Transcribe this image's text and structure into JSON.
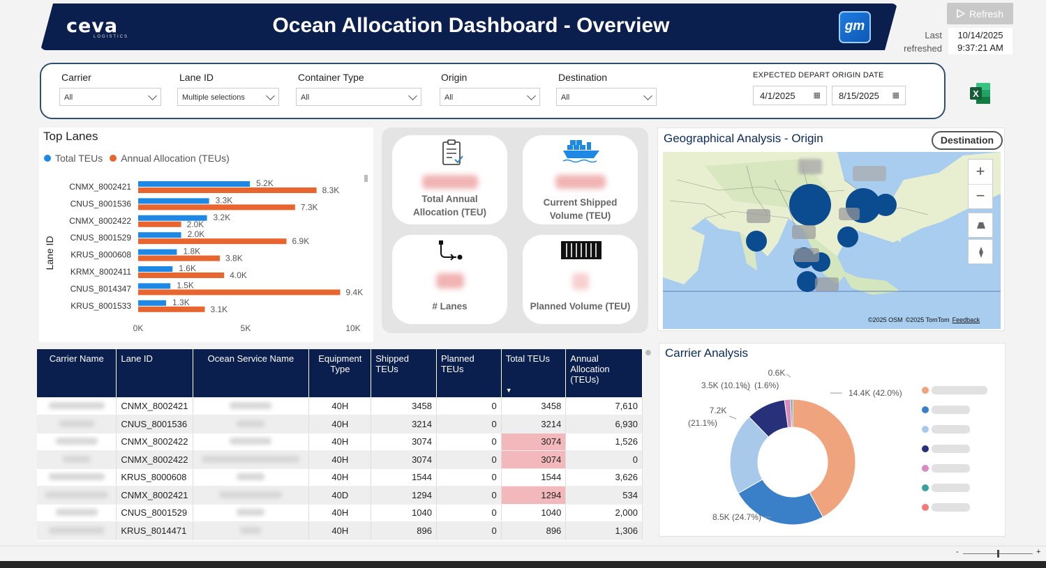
{
  "header": {
    "logo": "ceva",
    "logo_sub": "LOGISTICS",
    "title": "Ocean Allocation Dashboard - Overview",
    "brand_logo": "gm",
    "accent": "#0b1f4e"
  },
  "refresh": {
    "label": "Refresh",
    "last_refreshed_label_1": "Last",
    "last_refreshed_label_2": "refreshed",
    "date": "10/14/2025",
    "time": "9:37:21 AM"
  },
  "filters": {
    "carrier": {
      "label": "Carrier",
      "value": "All"
    },
    "lane_id": {
      "label": "Lane ID",
      "value": "Multiple selections"
    },
    "container_type": {
      "label": "Container Type",
      "value": "All"
    },
    "origin": {
      "label": "Origin",
      "value": "All"
    },
    "destination": {
      "label": "Destination",
      "value": "All"
    },
    "date_range": {
      "label": "EXPECTED DEPART ORIGIN DATE",
      "start": "4/1/2025",
      "end": "8/15/2025"
    }
  },
  "top_lanes": {
    "title": "Top Lanes",
    "legend": [
      "Total TEUs",
      "Annual Allocation (TEUs)"
    ],
    "colors": {
      "total": "#1e88e5",
      "annual": "#e8652f"
    }
  },
  "chart_data": {
    "type": "bar",
    "title": "Top Lanes",
    "ylabel": "Lane ID",
    "xlabel": "",
    "orientation": "horizontal",
    "categories": [
      "CNMX_8002421",
      "CNUS_8001536",
      "CNMX_8002422",
      "CNUS_8001529",
      "KRUS_8000608",
      "KRMX_8002411",
      "CNUS_8014347",
      "KRUS_8001533"
    ],
    "series": [
      {
        "name": "Total TEUs",
        "values": [
          5200,
          3300,
          3200,
          2000,
          1800,
          1600,
          1500,
          1300
        ],
        "labels": [
          "5.2K",
          "3.3K",
          "3.2K",
          "2.0K",
          "1.8K",
          "1.6K",
          "1.5K",
          "1.3K"
        ]
      },
      {
        "name": "Annual Allocation (TEUs)",
        "values": [
          8300,
          7300,
          2000,
          6900,
          3800,
          4000,
          9400,
          3100
        ],
        "labels": [
          "8.3K",
          "7.3K",
          "2.0K",
          "6.9K",
          "3.8K",
          "4.0K",
          "9.4K",
          "3.1K"
        ]
      }
    ],
    "xlim": [
      0,
      10000
    ],
    "xticks": [
      "0K",
      "5K",
      "10K"
    ],
    "legend_position": "top-left"
  },
  "kpis": {
    "total_annual_allocation": {
      "label_1": "Total Annual",
      "label_2": "Allocation (TEU)",
      "icon": "clipboard-icon"
    },
    "current_shipped_volume": {
      "label_1": "Current Shipped",
      "label_2": "Volume (TEU)",
      "icon": "cargo-ship-icon"
    },
    "lanes": {
      "label": "# Lanes",
      "icon": "route-icon"
    },
    "planned_volume": {
      "label": "Planned Volume (TEU)",
      "icon": "container-icon"
    }
  },
  "geo": {
    "title": "Geographical Analysis - Origin",
    "toggle": "Destination",
    "attribution_1": "©2025 OSM",
    "attribution_2": "©2025 TomTom",
    "feedback": "Feedback",
    "zoom_in": "+",
    "zoom_out": "−"
  },
  "table": {
    "headers": [
      "Carrier Name",
      "Lane ID",
      "Ocean Service Name",
      "Equipment Type",
      "Shipped TEUs",
      "Planned TEUs",
      "Total TEUs",
      "Annual Allocation (TEUs)"
    ],
    "rows": [
      {
        "lane": "CNMX_8002421",
        "equip": "40H",
        "shipped": "3458",
        "planned": "0",
        "total": "3458",
        "annual": "7,610",
        "hl": false
      },
      {
        "lane": "CNUS_8001536",
        "equip": "40H",
        "shipped": "3214",
        "planned": "0",
        "total": "3214",
        "annual": "6,930",
        "hl": false
      },
      {
        "lane": "CNMX_8002422",
        "equip": "40H",
        "shipped": "3074",
        "planned": "0",
        "total": "3074",
        "annual": "1,526",
        "hl": true
      },
      {
        "lane": "CNMX_8002422",
        "equip": "40H",
        "shipped": "3074",
        "planned": "0",
        "total": "3074",
        "annual": "0",
        "hl": true
      },
      {
        "lane": "KRUS_8000608",
        "equip": "40H",
        "shipped": "1544",
        "planned": "0",
        "total": "1544",
        "annual": "3,626",
        "hl": false
      },
      {
        "lane": "CNMX_8002421",
        "equip": "40D",
        "shipped": "1294",
        "planned": "0",
        "total": "1294",
        "annual": "534",
        "hl": true
      },
      {
        "lane": "CNUS_8001529",
        "equip": "40H",
        "shipped": "1040",
        "planned": "0",
        "total": "1040",
        "annual": "2,000",
        "hl": false
      },
      {
        "lane": "KRUS_8014471",
        "equip": "40H",
        "shipped": "896",
        "planned": "0",
        "total": "896",
        "annual": "1,306",
        "hl": false
      }
    ],
    "highlight_color": "#f2b8bb"
  },
  "carrier_analysis": {
    "title": "Carrier Analysis",
    "slices": [
      {
        "label": "14.4K (42.0%)",
        "value": 42.0,
        "color": "#f0a47e"
      },
      {
        "label": "8.5K (24.7%)",
        "value": 24.7,
        "color": "#3a80c9"
      },
      {
        "label_1": "7.2K",
        "label_2": "(21.1%)",
        "value": 21.1,
        "color": "#a9c9ea"
      },
      {
        "label": "3.5K (10.1%)",
        "value": 10.1,
        "color": "#27317a"
      },
      {
        "label": "(1.6%)",
        "value": 1.6,
        "color": "#d98bc0"
      },
      {
        "label": "0.6K",
        "value": 0.5,
        "color": "#3aa0a0"
      }
    ],
    "legend_colors": [
      "#f0a47e",
      "#3a80c9",
      "#a9c9ea",
      "#27317a",
      "#d98bc0",
      "#3aa0a0",
      "#f07a7a"
    ]
  },
  "zoom_bar": {
    "minus": "-",
    "plus": "+"
  }
}
